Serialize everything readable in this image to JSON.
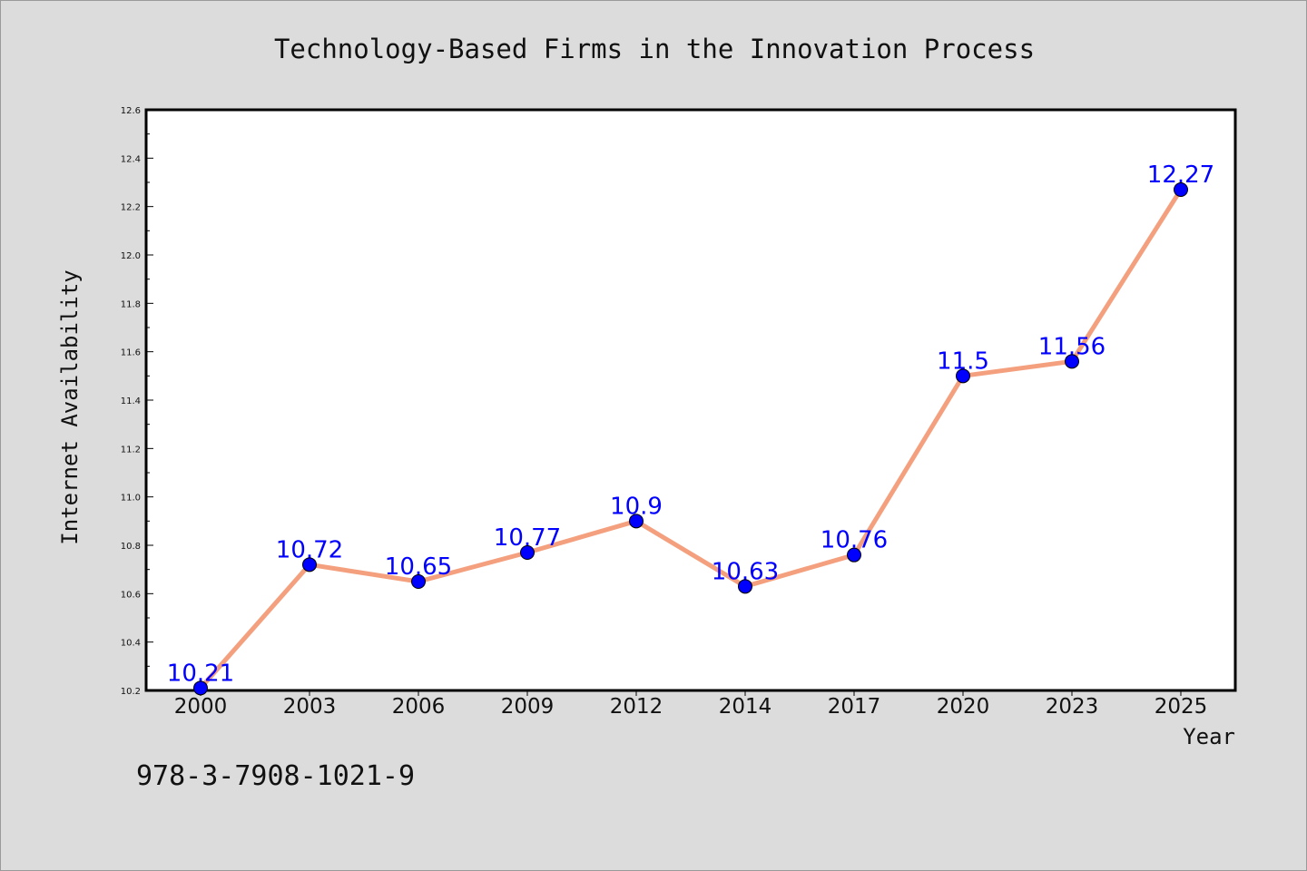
{
  "chart_data": {
    "type": "line",
    "title": "Technology-Based Firms in the Innovation Process",
    "xlabel": "Year",
    "ylabel": "Internet Availability",
    "categories": [
      "2000",
      "2003",
      "2006",
      "2009",
      "2012",
      "2014",
      "2017",
      "2020",
      "2023",
      "2025"
    ],
    "series": [
      {
        "values": [
          10.21,
          10.72,
          10.65,
          10.77,
          10.9,
          10.63,
          10.76,
          11.5,
          11.56,
          12.27
        ],
        "data_labels": [
          "10.21",
          "10.72",
          "10.65",
          "10.77",
          "10.9",
          "10.63",
          "10.76",
          "11.5",
          "11.56",
          "12.27"
        ]
      }
    ],
    "ylim": [
      10.2,
      12.6
    ],
    "yticks": [
      "10.2",
      "10.4",
      "10.6",
      "10.8",
      "11.0",
      "11.2",
      "11.4",
      "11.6",
      "11.8",
      "12.0",
      "12.2",
      "12.4",
      "12.6"
    ],
    "grid": false,
    "legend": "none",
    "colors": {
      "line": "#f4a07e",
      "marker": "#0000ff",
      "data_label": "#0000ff",
      "background": "#dcdcdc",
      "plot_area": "#ffffff"
    }
  },
  "footer": {
    "isbn": "978-3-7908-1021-9"
  }
}
